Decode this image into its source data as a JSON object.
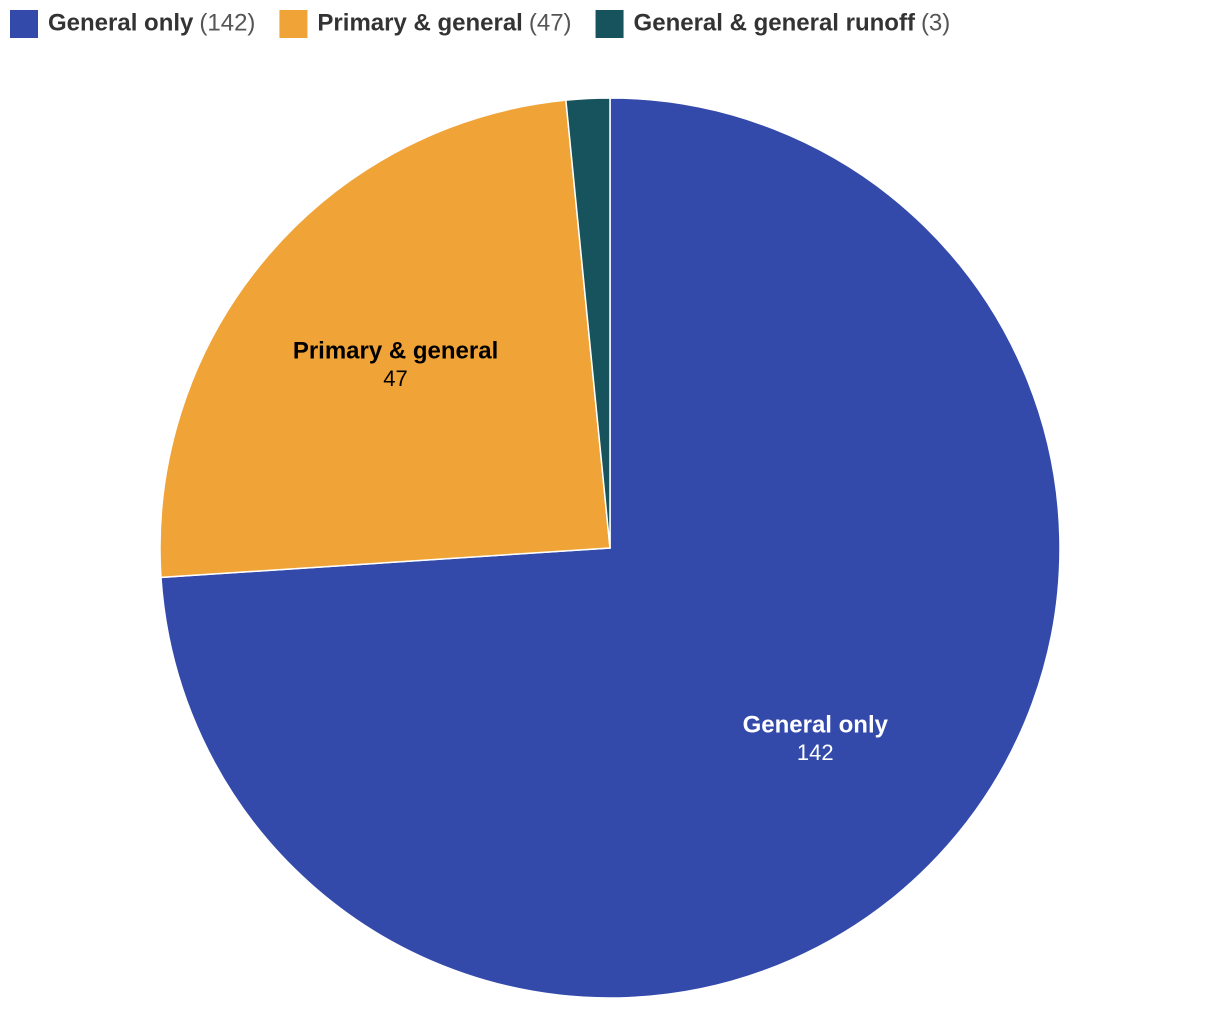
{
  "chart_data": {
    "type": "pie",
    "categories": [
      "General only",
      "Primary & general",
      "General & general runoff"
    ],
    "values": [
      142,
      47,
      3
    ],
    "legend_value_labels": [
      "(142)",
      "(47)",
      "(3)"
    ],
    "colors": [
      "#344aab",
      "#f0a336",
      "#17535c"
    ],
    "legend": "top-left"
  }
}
